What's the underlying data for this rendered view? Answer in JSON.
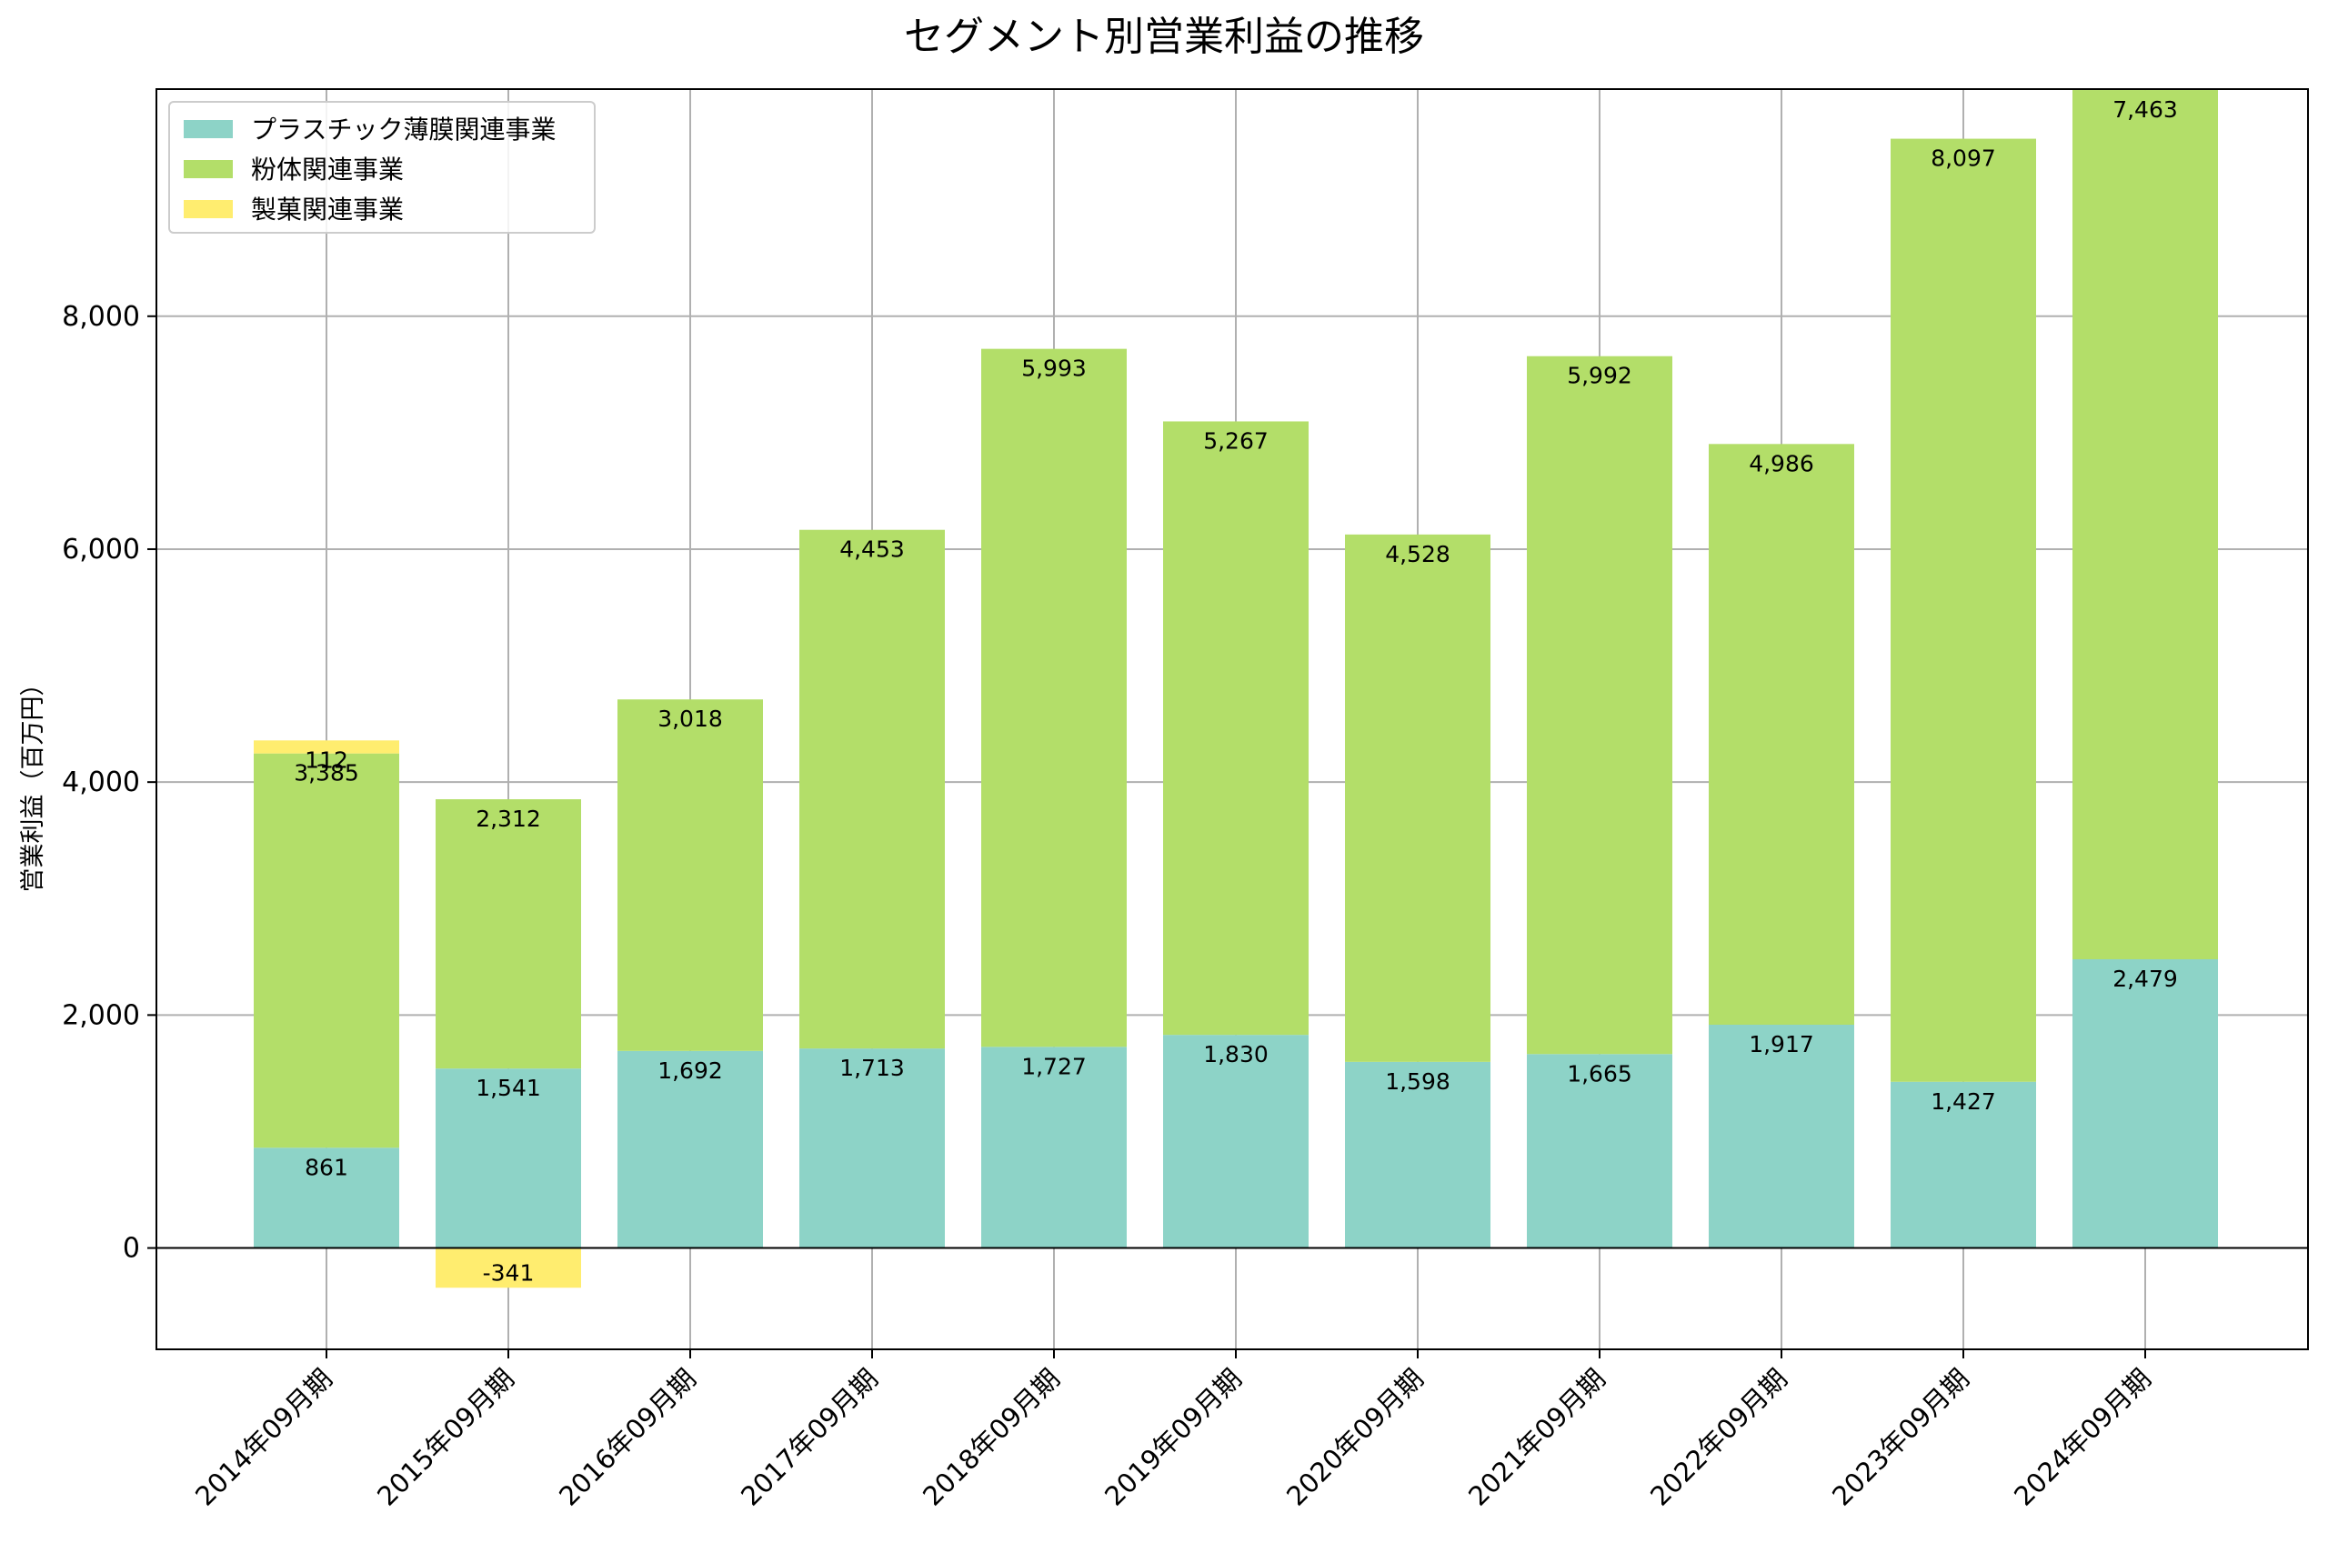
{
  "chart_data": {
    "type": "bar",
    "stacked": true,
    "title": "セグメント別営業利益の推移",
    "ylabel": "営業利益（百万円）",
    "xlabel": "",
    "ylim": [
      -870,
      9950
    ],
    "yticks": [
      0,
      2000,
      4000,
      6000,
      8000
    ],
    "ytick_labels": [
      "0",
      "2,000",
      "4,000",
      "6,000",
      "8,000"
    ],
    "grid": true,
    "legend_position": "top-left",
    "categories": [
      "2014年09月期",
      "2015年09月期",
      "2016年09月期",
      "2017年09月期",
      "2018年09月期",
      "2019年09月期",
      "2020年09月期",
      "2021年09月期",
      "2022年09月期",
      "2023年09月期",
      "2024年09月期"
    ],
    "series": [
      {
        "name": "プラスチック薄膜関連事業",
        "color": "#8dd3c7",
        "values": [
          861,
          1541,
          1692,
          1713,
          1727,
          1830,
          1598,
          1665,
          1917,
          1427,
          2479
        ],
        "labels": [
          "861",
          "1,541",
          "1,692",
          "1,713",
          "1,727",
          "1,830",
          "1,598",
          "1,665",
          "1,917",
          "1,427",
          "2,479"
        ]
      },
      {
        "name": "粉体関連事業",
        "color": "#b3de69",
        "values": [
          3385,
          2312,
          3018,
          4453,
          5993,
          5267,
          4528,
          5992,
          4986,
          8097,
          7463
        ],
        "labels": [
          "3,385",
          "2,312",
          "3,018",
          "4,453",
          "5,993",
          "5,267",
          "4,528",
          "5,992",
          "4,986",
          "8,097",
          "7,463"
        ]
      },
      {
        "name": "製菓関連事業",
        "color": "#ffed6f",
        "values": [
          112,
          -341,
          null,
          null,
          null,
          null,
          null,
          null,
          null,
          null,
          null
        ],
        "labels": [
          "112",
          "-341",
          "",
          "",
          "",
          "",
          "",
          "",
          "",
          "",
          ""
        ]
      }
    ]
  }
}
